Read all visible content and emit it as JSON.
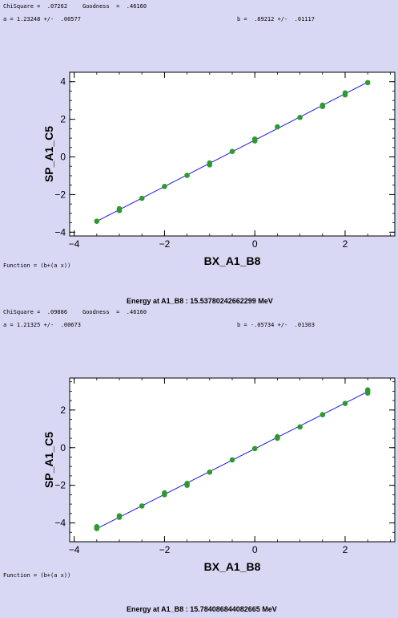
{
  "panels": [
    {
      "fit": {
        "chisquare": "ChiSquare =  .07262",
        "goodness": "Goodness  =  .46160",
        "a_line": "a = 1.23248 +/-  .00577",
        "b_line": "b =  .89212 +/-  .01117",
        "function_line": "Function = (b+(a x))"
      },
      "energy": "Energy at A1_B8 : 15.53780242662299 MeV"
    },
    {
      "fit": {
        "chisquare": "ChiSquare =  .09886",
        "goodness": "Goodness  =  .46160",
        "a_line": "a = 1.21325 +/-  .00673",
        "b_line": "b = -.05734 +/-  .01303",
        "function_line": "Function = (b+(a x))"
      },
      "energy": "Energy at A1_B8 : 15.784086844082665 MeV"
    }
  ],
  "colors": {
    "background": "#d8d8f4",
    "plot_bg": "#ffffff",
    "points": "#2e9a2e",
    "fit_line": "#1a1aee"
  },
  "chart_data": [
    {
      "type": "scatter",
      "xlabel": "BX_A1_B8",
      "ylabel": "SP_A1_C5",
      "xlim": [
        -4.1,
        3.1
      ],
      "ylim": [
        -4.2,
        4.5
      ],
      "xticks": [
        -4,
        -2,
        0,
        2
      ],
      "yticks": [
        -4,
        -2,
        0,
        2,
        4
      ],
      "x_tick_labels": [
        "−4",
        "−2",
        "0",
        "2"
      ],
      "y_tick_labels": [
        "−4",
        "−2",
        "0",
        "2",
        "4"
      ],
      "fit": {
        "a": 1.23248,
        "b": 0.89212,
        "x_range": [
          -3.5,
          2.5
        ]
      },
      "points": [
        [
          -3.5,
          -3.42
        ],
        [
          -3.0,
          -2.75
        ],
        [
          -3.0,
          -2.85
        ],
        [
          -2.5,
          -2.2
        ],
        [
          -2.0,
          -1.57
        ],
        [
          -1.5,
          -0.98
        ],
        [
          -1.0,
          -0.32
        ],
        [
          -1.0,
          -0.42
        ],
        [
          -0.5,
          0.29
        ],
        [
          0.0,
          0.85
        ],
        [
          0.0,
          0.95
        ],
        [
          0.5,
          1.6
        ],
        [
          1.0,
          2.1
        ],
        [
          1.5,
          2.68
        ],
        [
          1.5,
          2.75
        ],
        [
          2.0,
          3.3
        ],
        [
          2.0,
          3.4
        ],
        [
          2.5,
          3.95
        ]
      ]
    },
    {
      "type": "scatter",
      "xlabel": "BX_A1_B8",
      "ylabel": "SP_A1_C5",
      "xlim": [
        -4.1,
        3.1
      ],
      "ylim": [
        -5.0,
        3.7
      ],
      "xticks": [
        -4,
        -2,
        0,
        2
      ],
      "yticks": [
        -4,
        -2,
        0,
        2
      ],
      "x_tick_labels": [
        "−4",
        "−2",
        "0",
        "2"
      ],
      "y_tick_labels": [
        "−4",
        "−2",
        "0",
        "2"
      ],
      "fit": {
        "a": 1.21325,
        "b": -0.05734,
        "x_range": [
          -3.5,
          2.5
        ]
      },
      "points": [
        [
          -3.5,
          -4.3
        ],
        [
          -3.5,
          -4.2
        ],
        [
          -3.0,
          -3.7
        ],
        [
          -3.0,
          -3.62
        ],
        [
          -2.5,
          -3.1
        ],
        [
          -2.0,
          -2.5
        ],
        [
          -2.0,
          -2.4
        ],
        [
          -1.5,
          -2.0
        ],
        [
          -1.5,
          -1.9
        ],
        [
          -1.0,
          -1.3
        ],
        [
          -0.5,
          -0.65
        ],
        [
          0.0,
          -0.05
        ],
        [
          0.5,
          0.5
        ],
        [
          0.5,
          0.58
        ],
        [
          1.0,
          1.1
        ],
        [
          1.5,
          1.75
        ],
        [
          2.0,
          2.35
        ],
        [
          2.5,
          2.9
        ],
        [
          2.5,
          3.0
        ],
        [
          2.5,
          3.07
        ]
      ]
    }
  ]
}
